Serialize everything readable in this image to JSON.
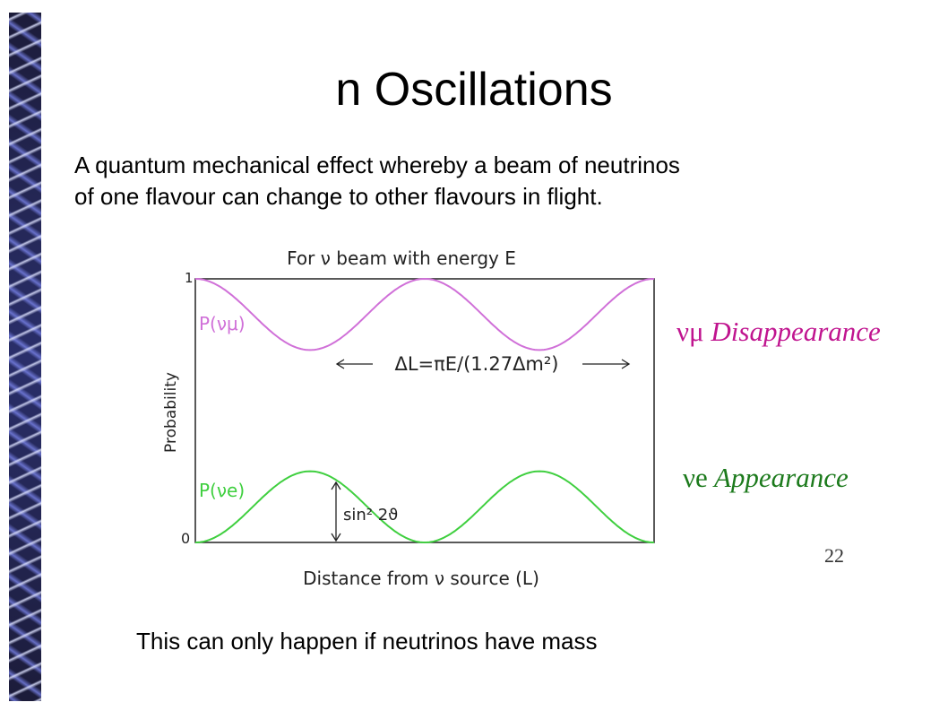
{
  "slide": {
    "title": "n Oscillations",
    "intro_line1": "A quantum mechanical effect whereby a beam of neutrinos",
    "intro_line2": "of one flavour can change to other flavours in flight.",
    "footer": "This can only happen if neutrinos have mass",
    "page_number": "22"
  },
  "figure": {
    "heading": "For ν beam with energy E",
    "ylabel": "Probability",
    "xlabel": "Distance from ν source (L)",
    "y_tick_top": "1",
    "y_tick_bottom": "0",
    "label_mu_curve": "P(νμ)",
    "label_e_curve": "P(νe)",
    "period_formula": "ΔL=πE/(1.27Δm²)",
    "amplitude_formula": "sin² 2ϑ",
    "label_disappearance_symbol": "νμ",
    "label_disappearance_text": "Disappearance",
    "label_appearance_symbol": "νe",
    "label_appearance_text": "Appearance",
    "colors": {
      "mu": "#d070d8",
      "e": "#3fcf3f",
      "disappear": "#c0148f",
      "appear": "#1c7a1c"
    }
  },
  "chart_data": {
    "type": "line",
    "xlabel": "Distance from ν source (L)",
    "ylabel": "Probability",
    "ylim": [
      0,
      1
    ],
    "x_ticks": "none",
    "amplitude": 0.27,
    "series": [
      {
        "name": "P(νμ)",
        "x": [
          0,
          0.25,
          0.5,
          0.75,
          1.0,
          1.25,
          1.5,
          1.75,
          2.0
        ],
        "y": [
          1.0,
          0.865,
          0.73,
          0.865,
          1.0,
          0.865,
          0.73,
          0.865,
          1.0
        ]
      },
      {
        "name": "P(νe)",
        "x": [
          0,
          0.25,
          0.5,
          0.75,
          1.0,
          1.25,
          1.5,
          1.75,
          2.0
        ],
        "y": [
          0.0,
          0.135,
          0.27,
          0.135,
          0.0,
          0.135,
          0.27,
          0.135,
          0.0
        ]
      }
    ]
  }
}
